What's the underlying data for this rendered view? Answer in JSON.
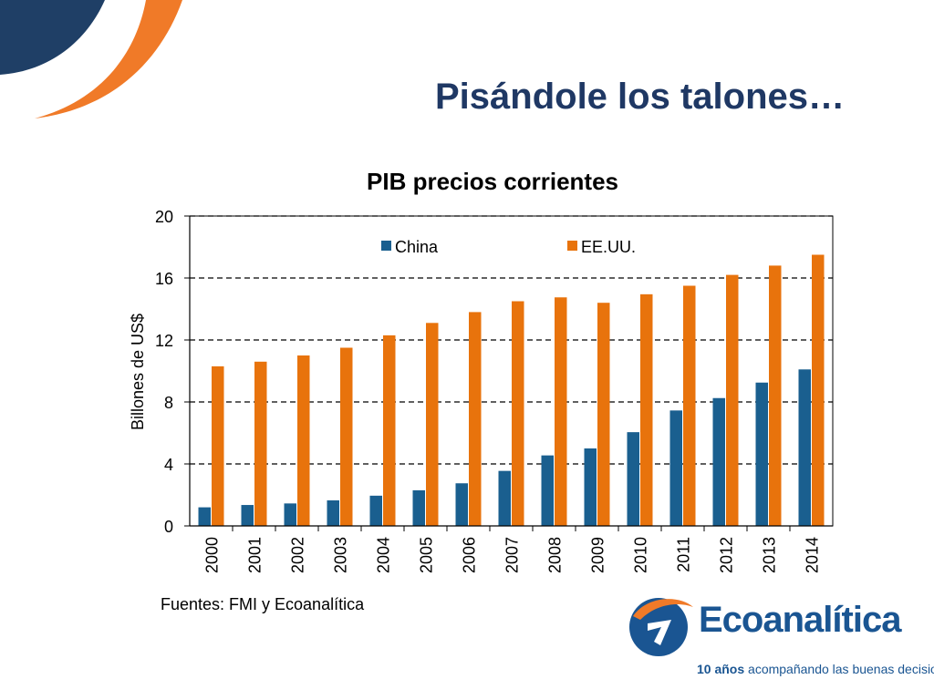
{
  "slide": {
    "title": "Pisándole los talones…",
    "source": "Fuentes: FMI y Ecoanalítica"
  },
  "logo": {
    "name": "Ecoanalítica",
    "tagline_bold": "10 años",
    "tagline_rest": " acompañando las buenas decisiones"
  },
  "colors": {
    "china": "#1a5f8f",
    "usa": "#e8730c",
    "title": "#1f3864",
    "brand_blue": "#1a5592",
    "brand_orange": "#f07a28"
  },
  "chart_data": {
    "type": "bar",
    "title": "PIB precios corrientes",
    "xlabel": "",
    "ylabel": "Billones de US$",
    "ylim": [
      0,
      20
    ],
    "yticks": [
      "0",
      "4",
      "8",
      "12",
      "16",
      "20"
    ],
    "grid": true,
    "legend_position": "top",
    "categories": [
      "2000",
      "2001",
      "2002",
      "2003",
      "2004",
      "2005",
      "2006",
      "2007",
      "2008",
      "2009",
      "2010",
      "2011",
      "2012",
      "2013",
      "2014"
    ],
    "series": [
      {
        "name": "China",
        "values": [
          1.2,
          1.35,
          1.45,
          1.65,
          1.95,
          2.3,
          2.75,
          3.55,
          4.55,
          5.0,
          6.05,
          7.45,
          8.25,
          9.25,
          10.1
        ]
      },
      {
        "name": "EE.UU.",
        "values": [
          10.3,
          10.6,
          11.0,
          11.5,
          12.3,
          13.1,
          13.8,
          14.5,
          14.75,
          14.4,
          14.95,
          15.5,
          16.2,
          16.8,
          17.5
        ]
      }
    ]
  }
}
